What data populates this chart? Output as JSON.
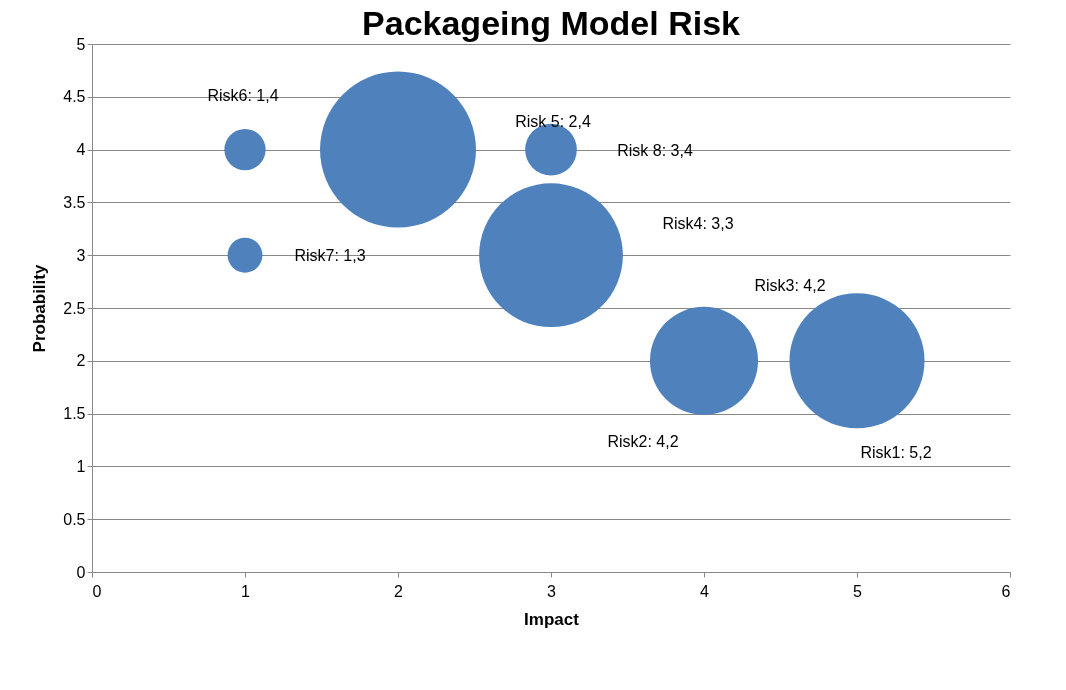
{
  "chart_data": {
    "type": "bubble",
    "title": "Packageing Model Risk",
    "xlabel": "Impact",
    "ylabel": "Probability",
    "x": [
      1,
      2,
      3,
      1,
      3,
      4,
      5
    ],
    "series": [
      {
        "color": "#4f81bd",
        "values": [
          4,
          4,
          4,
          3,
          3,
          2,
          2
        ],
        "sizes": [
          0.07,
          1,
          0.11,
          0.05,
          0.85,
          0.48,
          0.75
        ]
      }
    ],
    "xlim": [
      0,
      6
    ],
    "xticks": [
      0,
      1,
      2,
      3,
      4,
      5,
      6
    ],
    "ylim": [
      0,
      5
    ],
    "yticks": [
      0,
      0.5,
      1,
      1.5,
      2,
      2.5,
      3,
      3.5,
      4,
      4.5,
      5
    ],
    "grid": "y",
    "legend": false,
    "marker": "circle",
    "annotations": [
      "Risk6: 1,4",
      "Risk 5: 2,4",
      "Risk 8: 3,4",
      "Risk4: 3,3",
      "Risk7: 1,3",
      "Risk3: 4,2",
      "Risk2: 4,2",
      "Risk1: 5,2"
    ]
  }
}
